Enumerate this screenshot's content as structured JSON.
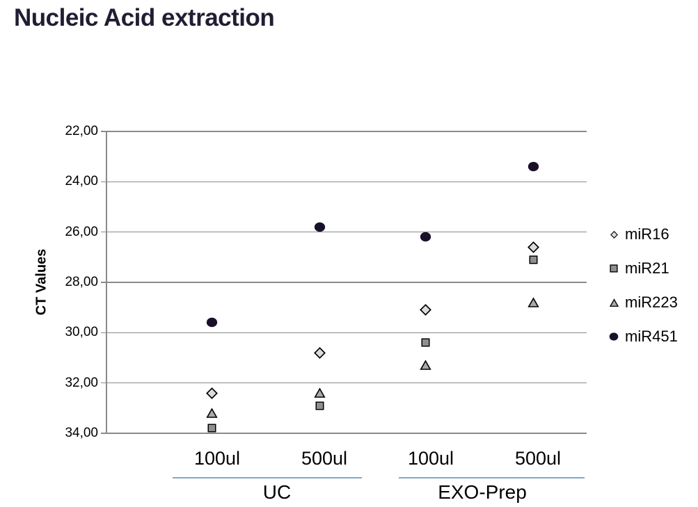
{
  "title": "Nucleic Acid extraction",
  "colors": {
    "title_text": "#221d33",
    "grid": "#8a8a8a",
    "group_underline": "#82a7c6",
    "marker_diamond_fill": "#dcdcdc",
    "marker_square_fill": "#8f8f8f",
    "marker_triangle_fill": "#a9a9a9",
    "marker_circle_fill": "#1a1129",
    "marker_stroke": "#000000"
  },
  "chart_data": {
    "type": "scatter",
    "title": "Nucleic Acid extraction",
    "ylabel": "CT Values",
    "y_axis": {
      "min": 22,
      "max": 34,
      "tick_step": 2,
      "inverted": true,
      "tick_labels": [
        "22,00",
        "24,00",
        "26,00",
        "28,00",
        "30,00",
        "32,00",
        "34,00"
      ]
    },
    "grid": "horizontal",
    "groups": [
      {
        "label": "UC",
        "categories": [
          "100ul",
          "500ul"
        ]
      },
      {
        "label": "EXO-Prep",
        "categories": [
          "100ul",
          "500ul"
        ]
      }
    ],
    "categories": [
      "UC 100ul",
      "UC 500ul",
      "EXO-Prep 100ul",
      "EXO-Prep 500ul"
    ],
    "series": [
      {
        "name": "miR16",
        "marker": "diamond",
        "values": [
          32.4,
          30.8,
          29.1,
          26.6
        ]
      },
      {
        "name": "miR21",
        "marker": "square",
        "values": [
          33.8,
          32.9,
          30.4,
          27.1
        ]
      },
      {
        "name": "miR223",
        "marker": "triangle",
        "values": [
          33.2,
          32.4,
          31.3,
          28.8
        ]
      },
      {
        "name": "miR451",
        "marker": "circle",
        "values": [
          29.6,
          25.8,
          26.2,
          23.4
        ]
      }
    ],
    "legend": {
      "position": "right",
      "entries": [
        "miR16",
        "miR21",
        "miR223",
        "miR451"
      ]
    }
  }
}
